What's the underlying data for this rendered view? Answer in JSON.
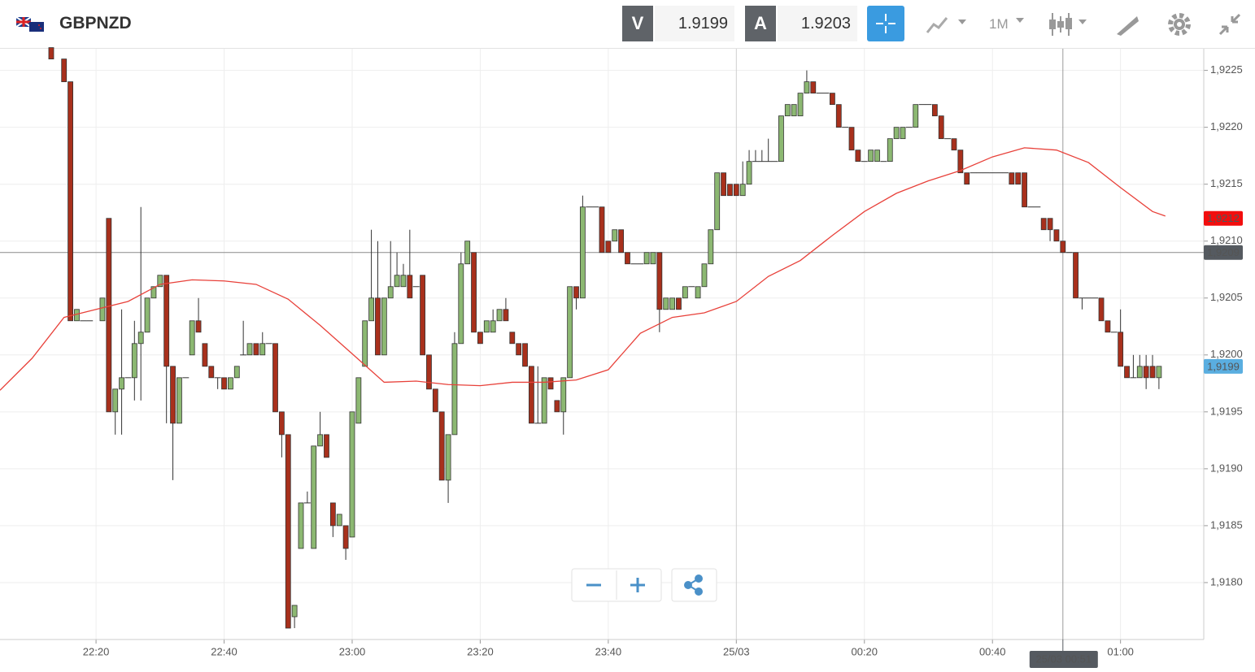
{
  "toolbar": {
    "symbol": "GBPNZD",
    "bid_label": "V",
    "bid": "1.9199",
    "ask_label": "A",
    "ask": "1.9203",
    "timeframe": "1M"
  },
  "chart_data": {
    "type": "candlestick",
    "up_color": "#8cb872",
    "down_color": "#a8301c",
    "xlim": [
      "22:05",
      "01:13"
    ],
    "ylim": [
      1.9175,
      1.92269
    ],
    "yticks": [
      {
        "value": 1.918,
        "label": "1,9180"
      },
      {
        "value": 1.9185,
        "label": "1,9185"
      },
      {
        "value": 1.919,
        "label": "1,9190"
      },
      {
        "value": 1.9195,
        "label": "1,9195"
      },
      {
        "value": 1.92,
        "label": "1,9200"
      },
      {
        "value": 1.9205,
        "label": "1,9205"
      },
      {
        "value": 1.921,
        "label": "1,9210"
      },
      {
        "value": 1.9215,
        "label": "1,9215"
      },
      {
        "value": 1.922,
        "label": "1,9220"
      },
      {
        "value": 1.9225,
        "label": "1,9225"
      }
    ],
    "xticks": [
      "22:20",
      "22:40",
      "23:00",
      "23:20",
      "23:40",
      {
        "value": "00:00",
        "label": "25/03"
      },
      "00:20",
      "00:40",
      "01:00"
    ],
    "grid": true,
    "x": [
      "22:13",
      "22:15",
      "22:16",
      "22:17",
      "22:18",
      "22:19",
      "22:21",
      "22:22",
      "22:23",
      "22:24",
      "22:25",
      "22:26",
      "22:27",
      "22:28",
      "22:29",
      "22:30",
      "22:31",
      "22:32",
      "22:33",
      "22:34",
      "22:35",
      "22:36",
      "22:37",
      "22:38",
      "22:39",
      "22:40",
      "22:41",
      "22:42",
      "22:43",
      "22:44",
      "22:45",
      "22:46",
      "22:47",
      "22:48",
      "22:49",
      "22:50",
      "22:51",
      "22:52",
      "22:53",
      "22:54",
      "22:55",
      "22:56",
      "22:57",
      "22:58",
      "22:59",
      "23:00",
      "23:01",
      "23:02",
      "23:03",
      "23:04",
      "23:05",
      "23:06",
      "23:07",
      "23:08",
      "23:09",
      "23:10",
      "23:11",
      "23:12",
      "23:13",
      "23:14",
      "23:15",
      "23:16",
      "23:17",
      "23:18",
      "23:19",
      "23:20",
      "23:21",
      "23:22",
      "23:23",
      "23:24",
      "23:25",
      "23:26",
      "23:27",
      "23:28",
      "23:29",
      "23:30",
      "23:31",
      "23:32",
      "23:33",
      "23:34",
      "23:35",
      "23:36",
      "23:37",
      "23:38",
      "23:39",
      "23:40",
      "23:41",
      "23:42",
      "23:43",
      "23:44",
      "23:45",
      "23:46",
      "23:47",
      "23:48",
      "23:49",
      "23:50",
      "23:51",
      "23:52",
      "23:53",
      "23:54",
      "23:55",
      "23:56",
      "23:57",
      "23:58",
      "23:59",
      "00:00",
      "00:01",
      "00:02",
      "00:03",
      "00:04",
      "00:05",
      "00:06",
      "00:07",
      "00:08",
      "00:09",
      "00:10",
      "00:11",
      "00:12",
      "00:13",
      "00:14",
      "00:15",
      "00:16",
      "00:17",
      "00:18",
      "00:19",
      "00:20",
      "00:21",
      "00:22",
      "00:23",
      "00:24",
      "00:25",
      "00:26",
      "00:27",
      "00:28",
      "00:29",
      "00:30",
      "00:31",
      "00:32",
      "00:33",
      "00:34",
      "00:35",
      "00:36",
      "00:37",
      "00:38",
      "00:39",
      "00:40",
      "00:41",
      "00:42",
      "00:43",
      "00:44",
      "00:45",
      "00:46",
      "00:47",
      "00:48",
      "00:49",
      "00:50",
      "00:51",
      "00:52",
      "00:53",
      "00:54",
      "00:55",
      "00:56",
      "00:57",
      "00:58",
      "00:59",
      "01:00",
      "01:01",
      "01:02",
      "01:03",
      "01:04",
      "01:05",
      "01:06"
    ],
    "ohlc": [
      [
        1.9227,
        1.9227,
        1.9226,
        1.9226
      ],
      [
        1.9226,
        1.9226,
        1.9224,
        1.9224
      ],
      [
        1.9224,
        1.9224,
        1.9203,
        1.9203
      ],
      [
        1.9203,
        1.9204,
        1.9203,
        1.9204
      ],
      [
        1.9203,
        1.9203,
        1.9203,
        1.9203
      ],
      [
        1.9203,
        1.9203,
        1.9203,
        1.9203
      ],
      [
        1.9203,
        1.9205,
        1.9203,
        1.9205
      ],
      [
        1.9212,
        1.9212,
        1.9195,
        1.9195
      ],
      [
        1.9195,
        1.9197,
        1.9193,
        1.9197
      ],
      [
        1.9197,
        1.9204,
        1.9193,
        1.9198
      ],
      [
        1.9198,
        1.9198,
        1.9198,
        1.9198
      ],
      [
        1.9198,
        1.9203,
        1.9196,
        1.9201
      ],
      [
        1.9201,
        1.9213,
        1.9196,
        1.9202
      ],
      [
        1.9202,
        1.9205,
        1.9202,
        1.9205
      ],
      [
        1.9205,
        1.9206,
        1.9205,
        1.9206
      ],
      [
        1.9206,
        1.9207,
        1.9206,
        1.9207
      ],
      [
        1.9207,
        1.9207,
        1.9194,
        1.9199
      ],
      [
        1.9199,
        1.9199,
        1.9189,
        1.9194
      ],
      [
        1.9194,
        1.9198,
        1.9194,
        1.9198
      ],
      [
        1.9198,
        1.9198,
        1.9198,
        1.9198
      ],
      [
        1.92,
        1.9203,
        1.92,
        1.9203
      ],
      [
        1.9203,
        1.9205,
        1.9202,
        1.9202
      ],
      [
        1.9201,
        1.9201,
        1.9199,
        1.9199
      ],
      [
        1.9199,
        1.9199,
        1.9198,
        1.9198
      ],
      [
        1.9198,
        1.9198,
        1.9197,
        1.9198
      ],
      [
        1.9198,
        1.9198,
        1.9197,
        1.9197
      ],
      [
        1.9197,
        1.9198,
        1.9197,
        1.9198
      ],
      [
        1.9198,
        1.9199,
        1.9198,
        1.9199
      ],
      [
        1.92,
        1.9203,
        1.92,
        1.92
      ],
      [
        1.92,
        1.9201,
        1.92,
        1.9201
      ],
      [
        1.9201,
        1.9201,
        1.92,
        1.92
      ],
      [
        1.92,
        1.9202,
        1.92,
        1.9201
      ],
      [
        1.9201,
        1.9201,
        1.9201,
        1.9201
      ],
      [
        1.9201,
        1.9201,
        1.9195,
        1.9195
      ],
      [
        1.9195,
        1.9195,
        1.9191,
        1.9193
      ],
      [
        1.9193,
        1.9193,
        1.9176,
        1.9176
      ],
      [
        1.9177,
        1.9178,
        1.9176,
        1.9178
      ],
      [
        1.9183,
        1.9187,
        1.9183,
        1.9187
      ],
      [
        1.9187,
        1.9188,
        1.9187,
        1.9187
      ],
      [
        1.9183,
        1.9192,
        1.9183,
        1.9192
      ],
      [
        1.9192,
        1.9195,
        1.9192,
        1.9193
      ],
      [
        1.9193,
        1.9193,
        1.9191,
        1.9191
      ],
      [
        1.9187,
        1.9187,
        1.9184,
        1.9185
      ],
      [
        1.9185,
        1.9186,
        1.9185,
        1.9186
      ],
      [
        1.9185,
        1.9185,
        1.9182,
        1.9183
      ],
      [
        1.9184,
        1.9195,
        1.9184,
        1.9195
      ],
      [
        1.9194,
        1.9198,
        1.9194,
        1.9198
      ],
      [
        1.9199,
        1.9203,
        1.9199,
        1.9203
      ],
      [
        1.9203,
        1.9211,
        1.9203,
        1.9205
      ],
      [
        1.9205,
        1.921,
        1.92,
        1.92
      ],
      [
        1.92,
        1.9205,
        1.92,
        1.9205
      ],
      [
        1.9205,
        1.921,
        1.9205,
        1.9206
      ],
      [
        1.9206,
        1.9209,
        1.9206,
        1.9207
      ],
      [
        1.9206,
        1.9208,
        1.9206,
        1.9207
      ],
      [
        1.9207,
        1.9211,
        1.9205,
        1.9205
      ],
      [
        1.9206,
        1.9206,
        1.9206,
        1.9206
      ],
      [
        1.9207,
        1.9207,
        1.92,
        1.92
      ],
      [
        1.92,
        1.92,
        1.9197,
        1.9197
      ],
      [
        1.9197,
        1.9197,
        1.9195,
        1.9195
      ],
      [
        1.9195,
        1.9195,
        1.9189,
        1.9189
      ],
      [
        1.9189,
        1.9193,
        1.9187,
        1.9193
      ],
      [
        1.9193,
        1.9202,
        1.9193,
        1.9201
      ],
      [
        1.9201,
        1.9209,
        1.9201,
        1.9208
      ],
      [
        1.9208,
        1.921,
        1.9208,
        1.921
      ],
      [
        1.9209,
        1.9209,
        1.9202,
        1.9202
      ],
      [
        1.9202,
        1.9202,
        1.9201,
        1.9201
      ],
      [
        1.9202,
        1.9203,
        1.9202,
        1.9203
      ],
      [
        1.9202,
        1.9204,
        1.9202,
        1.9203
      ],
      [
        1.9203,
        1.9204,
        1.9203,
        1.9204
      ],
      [
        1.9204,
        1.9205,
        1.9203,
        1.9203
      ],
      [
        1.9202,
        1.9202,
        1.9201,
        1.9201
      ],
      [
        1.9201,
        1.9201,
        1.92,
        1.92
      ],
      [
        1.9201,
        1.9201,
        1.9199,
        1.9199
      ],
      [
        1.9199,
        1.9199,
        1.9194,
        1.9194
      ],
      [
        1.9194,
        1.9199,
        1.9194,
        1.9194
      ],
      [
        1.9194,
        1.9198,
        1.9194,
        1.9198
      ],
      [
        1.9198,
        1.9198,
        1.9197,
        1.9197
      ],
      [
        1.9196,
        1.9196,
        1.9195,
        1.9195
      ],
      [
        1.9195,
        1.9198,
        1.9193,
        1.9198
      ],
      [
        1.9198,
        1.9206,
        1.9198,
        1.9206
      ],
      [
        1.9206,
        1.9206,
        1.9204,
        1.9205
      ],
      [
        1.9205,
        1.9214,
        1.9205,
        1.9213
      ],
      [
        1.9213,
        1.9213,
        1.9213,
        1.9213
      ],
      [
        1.9213,
        1.9213,
        1.9213,
        1.9213
      ],
      [
        1.9213,
        1.9213,
        1.9209,
        1.9209
      ],
      [
        1.921,
        1.921,
        1.9209,
        1.9209
      ],
      [
        1.921,
        1.9211,
        1.921,
        1.9211
      ],
      [
        1.9211,
        1.9211,
        1.9209,
        1.9209
      ],
      [
        1.9209,
        1.9209,
        1.9208,
        1.9208
      ],
      [
        1.9208,
        1.9208,
        1.9208,
        1.9208
      ],
      [
        1.9208,
        1.9208,
        1.9208,
        1.9208
      ],
      [
        1.9208,
        1.9209,
        1.9208,
        1.9209
      ],
      [
        1.9208,
        1.9209,
        1.9208,
        1.9209
      ],
      [
        1.9209,
        1.9209,
        1.9202,
        1.9204
      ],
      [
        1.9204,
        1.9205,
        1.9204,
        1.9205
      ],
      [
        1.9204,
        1.9205,
        1.9204,
        1.9205
      ],
      [
        1.9205,
        1.9205,
        1.9204,
        1.9204
      ],
      [
        1.9205,
        1.9206,
        1.9205,
        1.9206
      ],
      [
        1.9206,
        1.9206,
        1.9206,
        1.9206
      ],
      [
        1.9205,
        1.9206,
        1.9205,
        1.9206
      ],
      [
        1.9206,
        1.9208,
        1.9206,
        1.9208
      ],
      [
        1.9208,
        1.9211,
        1.9208,
        1.9211
      ],
      [
        1.9211,
        1.9216,
        1.9211,
        1.9216
      ],
      [
        1.9216,
        1.9216,
        1.9214,
        1.9214
      ],
      [
        1.9215,
        1.9215,
        1.9214,
        1.9214
      ],
      [
        1.9215,
        1.9215,
        1.9214,
        1.9214
      ],
      [
        1.9214,
        1.9217,
        1.9214,
        1.9215
      ],
      [
        1.9215,
        1.9218,
        1.9215,
        1.9217
      ],
      [
        1.9217,
        1.9218,
        1.9217,
        1.9217
      ],
      [
        1.9217,
        1.9218,
        1.9217,
        1.9217
      ],
      [
        1.9217,
        1.9219,
        1.9217,
        1.9217
      ],
      [
        1.9217,
        1.9217,
        1.9217,
        1.9217
      ],
      [
        1.9217,
        1.9221,
        1.9217,
        1.9221
      ],
      [
        1.9221,
        1.9222,
        1.9221,
        1.9222
      ],
      [
        1.9221,
        1.9222,
        1.9221,
        1.9222
      ],
      [
        1.9221,
        1.9223,
        1.9221,
        1.9223
      ],
      [
        1.9223,
        1.9225,
        1.9223,
        1.9224
      ],
      [
        1.9224,
        1.9224,
        1.9223,
        1.9223
      ],
      [
        1.9223,
        1.9223,
        1.9223,
        1.9223
      ],
      [
        1.9223,
        1.9223,
        1.9223,
        1.9223
      ],
      [
        1.9223,
        1.9223,
        1.9222,
        1.9222
      ],
      [
        1.9222,
        1.9222,
        1.922,
        1.922
      ],
      [
        1.922,
        1.922,
        1.922,
        1.922
      ],
      [
        1.922,
        1.922,
        1.9218,
        1.9218
      ],
      [
        1.9218,
        1.9218,
        1.9217,
        1.9217
      ],
      [
        1.9217,
        1.9217,
        1.9217,
        1.9217
      ],
      [
        1.9217,
        1.9218,
        1.9217,
        1.9218
      ],
      [
        1.9217,
        1.9218,
        1.9217,
        1.9218
      ],
      [
        1.9217,
        1.9217,
        1.9217,
        1.9217
      ],
      [
        1.9217,
        1.9219,
        1.9217,
        1.9219
      ],
      [
        1.9219,
        1.922,
        1.9219,
        1.922
      ],
      [
        1.9219,
        1.922,
        1.9219,
        1.922
      ],
      [
        1.922,
        1.922,
        1.922,
        1.922
      ],
      [
        1.922,
        1.9222,
        1.922,
        1.9222
      ],
      [
        1.9222,
        1.9222,
        1.9222,
        1.9222
      ],
      [
        1.9222,
        1.9222,
        1.9222,
        1.9222
      ],
      [
        1.9222,
        1.9222,
        1.9221,
        1.9221
      ],
      [
        1.9221,
        1.9221,
        1.9219,
        1.9219
      ],
      [
        1.9219,
        1.9219,
        1.9219,
        1.9219
      ],
      [
        1.9219,
        1.9219,
        1.9218,
        1.9218
      ],
      [
        1.9218,
        1.9218,
        1.9216,
        1.9216
      ],
      [
        1.9216,
        1.9216,
        1.9215,
        1.9215
      ],
      [
        1.9216,
        1.9216,
        1.9216,
        1.9216
      ],
      [
        1.9216,
        1.9216,
        1.9216,
        1.9216
      ],
      [
        1.9216,
        1.9216,
        1.9216,
        1.9216
      ],
      [
        1.9216,
        1.9216,
        1.9216,
        1.9216
      ],
      [
        1.9216,
        1.9216,
        1.9216,
        1.9216
      ],
      [
        1.9216,
        1.9216,
        1.9216,
        1.9216
      ],
      [
        1.9216,
        1.9216,
        1.9215,
        1.9215
      ],
      [
        1.9216,
        1.9216,
        1.9215,
        1.9215
      ],
      [
        1.9216,
        1.9216,
        1.9213,
        1.9213
      ],
      [
        1.9213,
        1.9213,
        1.9213,
        1.9213
      ],
      [
        1.9213,
        1.9213,
        1.9213,
        1.9213
      ],
      [
        1.9212,
        1.9212,
        1.9211,
        1.9211
      ],
      [
        1.9212,
        1.9212,
        1.921,
        1.9211
      ],
      [
        1.9211,
        1.9211,
        1.921,
        1.921
      ],
      [
        1.921,
        1.921,
        1.9209,
        1.9209
      ],
      [
        1.9209,
        1.9209,
        1.9209,
        1.9209
      ],
      [
        1.9209,
        1.9209,
        1.9205,
        1.9205
      ],
      [
        1.9205,
        1.9205,
        1.9204,
        1.9205
      ],
      [
        1.9205,
        1.9205,
        1.9205,
        1.9205
      ],
      [
        1.9205,
        1.9205,
        1.9205,
        1.9205
      ],
      [
        1.9205,
        1.9205,
        1.9203,
        1.9203
      ],
      [
        1.9203,
        1.9203,
        1.9202,
        1.9202
      ],
      [
        1.9202,
        1.9202,
        1.9202,
        1.9202
      ],
      [
        1.9202,
        1.9204,
        1.9199,
        1.9199
      ],
      [
        1.9199,
        1.9199,
        1.9198,
        1.9198
      ],
      [
        1.9198,
        1.92,
        1.9198,
        1.9198
      ],
      [
        1.9198,
        1.92,
        1.9198,
        1.9199
      ],
      [
        1.9199,
        1.92,
        1.9197,
        1.9198
      ],
      [
        1.9199,
        1.92,
        1.9198,
        1.9198
      ],
      [
        1.9198,
        1.9199,
        1.9197,
        1.9199
      ]
    ],
    "ma": {
      "color": "#e8413a",
      "x": [
        "22:05",
        "22:10",
        "22:15",
        "22:20",
        "22:25",
        "22:30",
        "22:35",
        "22:40",
        "22:45",
        "22:50",
        "22:55",
        "23:00",
        "23:05",
        "23:10",
        "23:15",
        "23:20",
        "23:25",
        "23:30",
        "23:35",
        "23:40",
        "23:45",
        "23:50",
        "23:55",
        "00:00",
        "00:05",
        "00:10",
        "00:15",
        "00:20",
        "00:25",
        "00:30",
        "00:35",
        "00:40",
        "00:45",
        "00:50",
        "00:55",
        "01:00",
        "01:05",
        "01:07"
      ],
      "values": [
        1.91969,
        1.91997,
        1.92033,
        1.9204,
        1.92047,
        1.92062,
        1.92066,
        1.92065,
        1.92062,
        1.92049,
        1.92026,
        1.92001,
        1.91976,
        1.91977,
        1.91974,
        1.91973,
        1.91976,
        1.91976,
        1.91978,
        1.91987,
        1.92019,
        1.92033,
        1.92037,
        1.92047,
        1.92069,
        1.92083,
        1.92105,
        1.92126,
        1.92142,
        1.92153,
        1.92162,
        1.92174,
        1.92182,
        1.9218,
        1.92169,
        1.92147,
        1.92126,
        1.92122
      ]
    },
    "price_tags": [
      {
        "value": 1.9212,
        "label": "1,9212",
        "color": "#f20d0d"
      },
      {
        "value": 1.9209,
        "label": "1,9209",
        "color": "#555a60"
      },
      {
        "value": 1.9199,
        "label": "1,9199",
        "color": "#5aaee0"
      }
    ],
    "crosshair": {
      "x": "00:51",
      "x_label": "25/03 00:51",
      "y": 1.9209
    }
  }
}
